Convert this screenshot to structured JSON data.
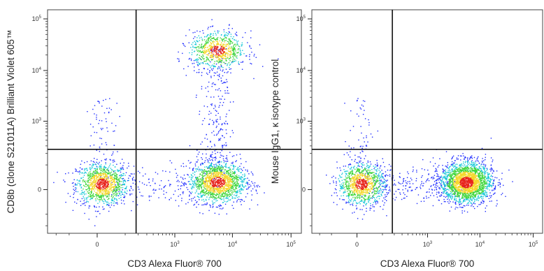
{
  "chart_data": [
    {
      "type": "scatter",
      "xlabel": "CD3 Alexa Fluor® 700",
      "ylabel": "CD8b (clone S21011A) Brilliant Violet 605™",
      "x_scale": "biexponential",
      "y_scale": "biexponential",
      "xlim": [
        -300,
        150000
      ],
      "ylim": [
        -300,
        150000
      ],
      "x_ticks": [
        {
          "value": 0,
          "base": "0",
          "exp": ""
        },
        {
          "value": 1000,
          "base": "10",
          "exp": "3"
        },
        {
          "value": 10000,
          "base": "10",
          "exp": "4"
        },
        {
          "value": 100000,
          "base": "10",
          "exp": "5"
        }
      ],
      "y_ticks": [
        {
          "value": 0,
          "base": "0",
          "exp": ""
        },
        {
          "value": 1000,
          "base": "10",
          "exp": "3"
        },
        {
          "value": 10000,
          "base": "10",
          "exp": "4"
        },
        {
          "value": 100000,
          "base": "10",
          "exp": "5"
        }
      ],
      "gate": {
        "x": 180,
        "y": 250
      },
      "populations": [
        {
          "center": [
            10,
            15
          ],
          "n": 1100
        },
        {
          "center": [
            5500,
            20
          ],
          "n": 1500
        },
        {
          "center": [
            5500,
            25000
          ],
          "n": 750
        },
        {
          "trail": "vertical",
          "x": 5000,
          "n": 300
        },
        {
          "trail": "vertical",
          "x": 10,
          "n": 80
        },
        {
          "trail": "horizontal",
          "y": 15,
          "n": 160
        }
      ]
    },
    {
      "type": "scatter",
      "xlabel": "CD3 Alexa Fluor® 700",
      "ylabel": "Mouse IgG1, κ isotype control",
      "x_scale": "biexponential",
      "y_scale": "biexponential",
      "xlim": [
        -300,
        150000
      ],
      "ylim": [
        -300,
        150000
      ],
      "x_ticks": [
        {
          "value": 0,
          "base": "0",
          "exp": ""
        },
        {
          "value": 1000,
          "base": "10",
          "exp": "3"
        },
        {
          "value": 10000,
          "base": "10",
          "exp": "4"
        },
        {
          "value": 100000,
          "base": "10",
          "exp": "5"
        }
      ],
      "y_ticks": [
        {
          "value": 0,
          "base": "0",
          "exp": ""
        },
        {
          "value": 1000,
          "base": "10",
          "exp": "3"
        },
        {
          "value": 10000,
          "base": "10",
          "exp": "4"
        },
        {
          "value": 100000,
          "base": "10",
          "exp": "5"
        }
      ],
      "gate": {
        "x": 180,
        "y": 250
      },
      "populations": [
        {
          "center": [
            10,
            15
          ],
          "n": 1000
        },
        {
          "center": [
            5500,
            20
          ],
          "n": 2200
        },
        {
          "trail": "vertical",
          "x": 10,
          "n": 70
        },
        {
          "trail": "horizontal",
          "y": 15,
          "n": 250
        }
      ]
    }
  ],
  "colors": {
    "density_low": "#1e2cff",
    "density_mid": "#19c8d8",
    "density_high": "#3fd63a",
    "density_peak": "#f5d72a",
    "density_max": "#e8241b",
    "gate_line": "#111111",
    "frame": "#444444"
  }
}
